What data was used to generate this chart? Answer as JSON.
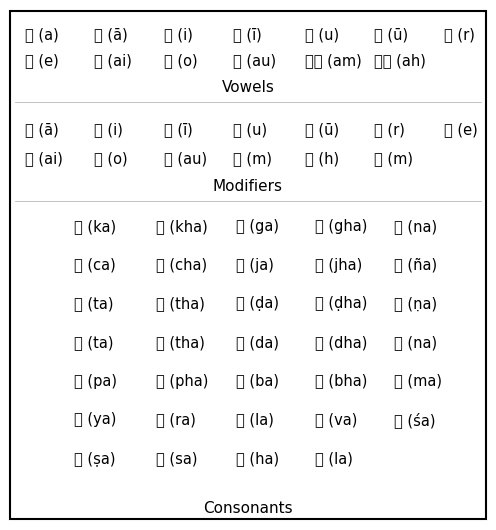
{
  "background_color": "#ffffff",
  "border_color": "#000000",
  "text_color": "#000000",
  "vowels_row1": [
    "अ (a)",
    "आ (ā)",
    "इ (i)",
    "ई (ī)",
    "उ (u)",
    "ऊ (ū)",
    "ऋ (r)"
  ],
  "vowels_row2": [
    "ए (e)",
    "ऐ (ai)",
    "ओ (o)",
    "औ (au)",
    "अं (am)",
    "अः (ah)"
  ],
  "vowels_label": "Vowels",
  "modifiers_row1": [
    "ा (ā)",
    "ि (i)",
    "ी (ī)",
    "ु (u)",
    "ू (ū)",
    "ृ (r)",
    "े (e)"
  ],
  "modifiers_row2": [
    "ै (ai)",
    "ो (o)",
    "ौ (au)",
    "ं (m)",
    "ः (h)",
    "ँ (m)"
  ],
  "modifiers_label": "Modifiers",
  "consonants_rows": [
    [
      "क (ka)",
      "ख (kha)",
      "ग (ga)",
      "घ (gha)",
      "ङ (na)"
    ],
    [
      "च (ca)",
      "छ (cha)",
      "ज (ja)",
      "झ (jha)",
      "ञ (ña)"
    ],
    [
      "ट (ta)",
      "ठ (tha)",
      "ड (ḍa)",
      "ढ (ḍha)",
      "ण (ṇa)"
    ],
    [
      "त (ta)",
      "थ (tha)",
      "द (da)",
      "ध (dha)",
      "न (na)"
    ],
    [
      "प (pa)",
      "फ (pha)",
      "ब (ba)",
      "भ (bha)",
      "म (ma)"
    ],
    [
      "य (ya)",
      "र (ra)",
      "ल (la)",
      "व (va)",
      "श (śa)"
    ],
    [
      "ष (ṣa)",
      "स (sa)",
      "ह (ha)",
      "ক (la)"
    ]
  ],
  "consonants_label": "Consonants",
  "figsize": [
    4.96,
    5.3
  ],
  "dpi": 100
}
